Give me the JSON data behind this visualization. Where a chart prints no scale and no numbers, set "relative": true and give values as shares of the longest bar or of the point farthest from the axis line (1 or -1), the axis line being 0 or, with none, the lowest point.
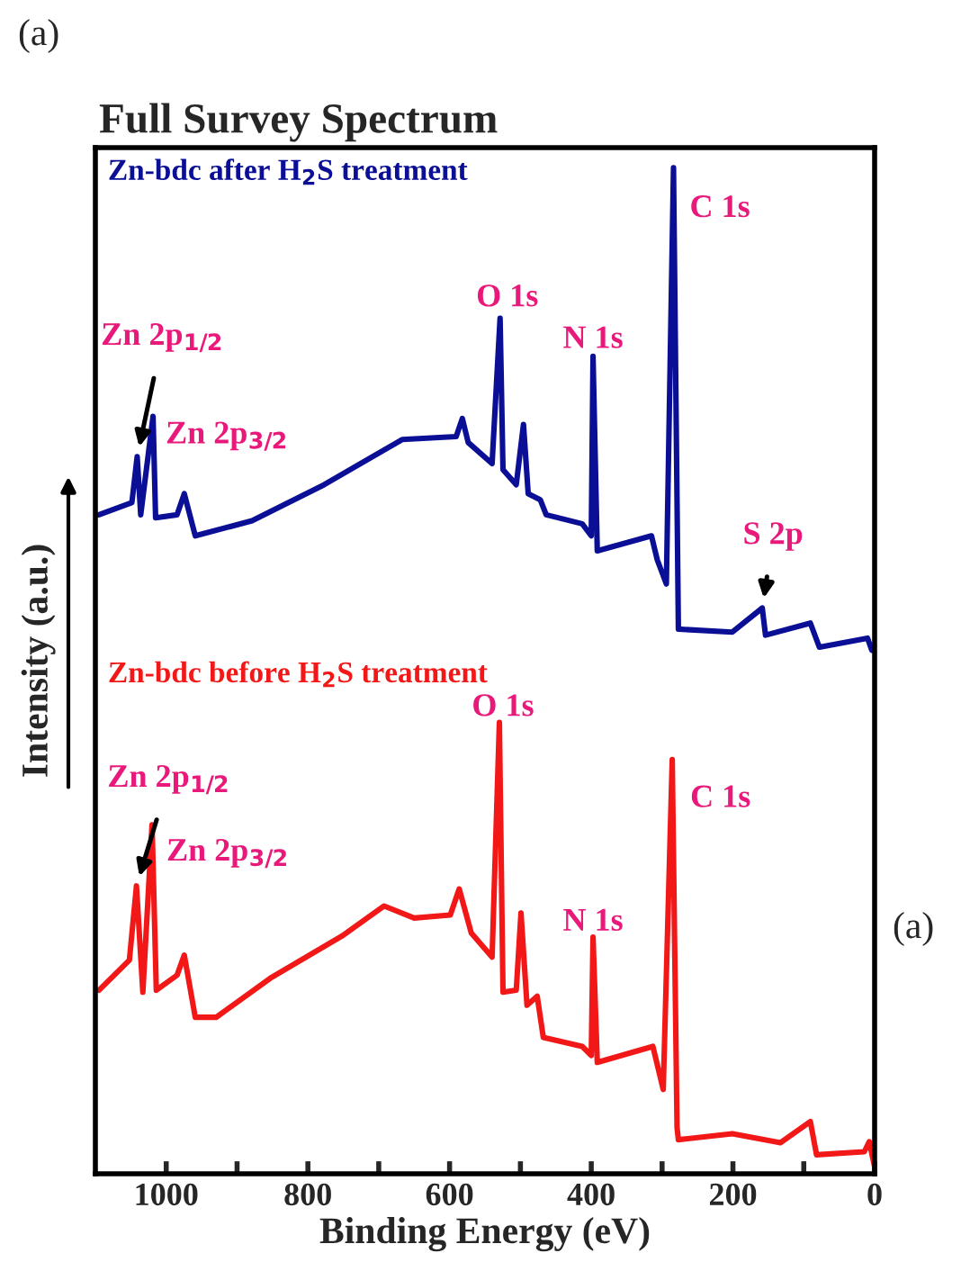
{
  "chart_data": {
    "type": "line",
    "title": "Full Survey Spectrum",
    "xlabel": "Binding Energy (eV)",
    "ylabel": "Intensity (a.u.)",
    "relative": true,
    "xlim": [
      1100,
      0
    ],
    "xticks": [
      1000,
      {
        "value": 900,
        "label": null
      },
      800,
      {
        "value": 700,
        "label": null
      },
      600,
      {
        "value": 500,
        "label": null
      },
      400,
      {
        "value": 300,
        "label": null
      },
      200,
      {
        "value": 100,
        "label": null
      },
      0
    ],
    "grid": false,
    "marker": "none",
    "line_style": "solid",
    "series": [
      {
        "name": "Zn-bdc after H$_{2}$S treatment",
        "color": "#0a0f96",
        "x": [
          1095,
          1048.5,
          1041,
          1036,
          1018.6,
          1015,
          984.7,
          974.5,
          959,
          878.8,
          777,
          667,
          590.7,
          582,
          573.7,
          540,
          528.7,
          524.6,
          505.9,
          495.7,
          489,
          472,
          463.6,
          412.8,
          400,
          397.5,
          391.5,
          315,
          306.8,
          294,
          283.9,
          277,
          200.8,
          158.6,
          154,
          90.7,
          78,
          10,
          4
        ],
        "values": [
          0.654,
          0.666,
          0.712,
          0.654,
          0.752,
          0.651,
          0.654,
          0.675,
          0.633,
          0.648,
          0.684,
          0.729,
          0.732,
          0.75,
          0.726,
          0.705,
          0.85,
          0.699,
          0.684,
          0.744,
          0.675,
          0.669,
          0.654,
          0.645,
          0.633,
          0.812,
          0.618,
          0.633,
          0.609,
          0.585,
          1.0,
          0.54,
          0.537,
          0.561,
          0.534,
          0.546,
          0.522,
          0.531,
          0.519
        ]
      },
      {
        "name": "Zn-bdc before H$_{2}$S treatment",
        "color": "#f21818",
        "x": [
          1095,
          1052,
          1042,
          1033,
          1020,
          1014,
          984.7,
          974.5,
          959,
          929.6,
          853,
          752,
          692.5,
          650,
          599,
          586.4,
          569.4,
          540,
          529.7,
          524.6,
          505.9,
          499.2,
          490.7,
          476.3,
          467.7,
          412.8,
          400,
          397.5,
          391.5,
          313,
          298.4,
          285.7,
          278.9,
          277,
          200.8,
          133,
          90.7,
          82,
          14.5,
          7.6,
          0
        ],
        "values": [
          0.18,
          0.21,
          0.284,
          0.178,
          0.345,
          0.18,
          0.195,
          0.215,
          0.153,
          0.153,
          0.192,
          0.234,
          0.264,
          0.252,
          0.255,
          0.281,
          0.237,
          0.213,
          0.447,
          0.178,
          0.18,
          0.257,
          0.165,
          0.174,
          0.133,
          0.124,
          0.115,
          0.233,
          0.108,
          0.124,
          0.081,
          0.41,
          0.043,
          0.031,
          0.037,
          0.028,
          0.049,
          0.016,
          0.019,
          0.029,
          0.004
        ]
      }
    ],
    "annotations": [
      "(a)",
      "(a)",
      {
        "text": "C 1s",
        "x": 283.9,
        "y": 1.0
      },
      {
        "text": "O 1s",
        "x": 528.7,
        "y": 0.85
      },
      {
        "text": "N 1s",
        "x": 397.5,
        "y": 0.812
      },
      {
        "text": "Zn 2p$_{1/2}$",
        "x": 1041,
        "y": 0.712
      },
      {
        "text": "Zn 2p$_{3/2}$",
        "x": 1018.6,
        "y": 0.752
      },
      {
        "text": "S 2p",
        "x": 158.6,
        "y": 0.561
      },
      {
        "text": "O 1s",
        "x": 529.7,
        "y": 0.447
      },
      {
        "text": "C 1s",
        "x": 285.7,
        "y": 0.41
      },
      {
        "text": "N 1s",
        "x": 397.5,
        "y": 0.233
      },
      {
        "text": "Zn 2p$_{1/2}$",
        "x": 1042,
        "y": 0.284
      },
      {
        "text": "Zn 2p$_{3/2}$",
        "x": 1020,
        "y": 0.345
      }
    ]
  }
}
